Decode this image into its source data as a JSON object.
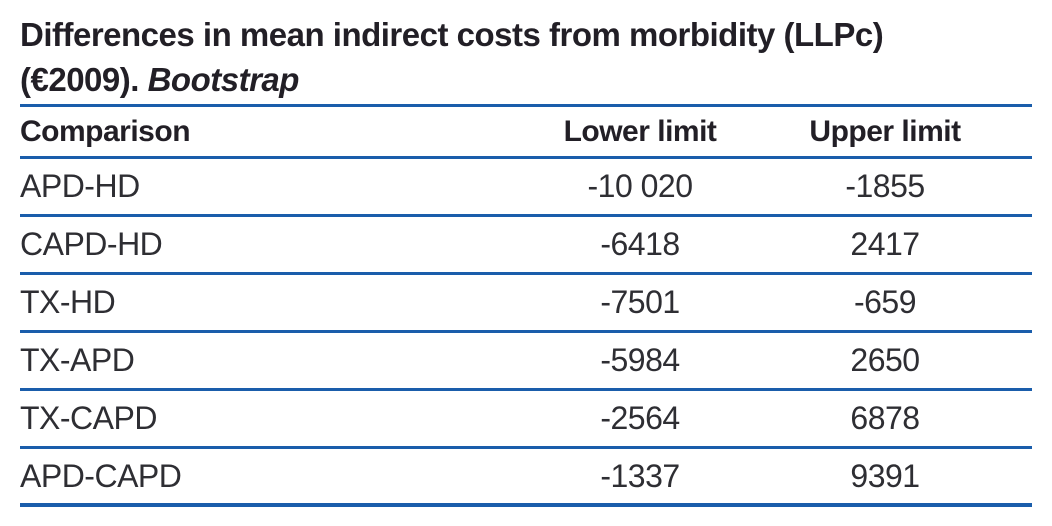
{
  "title": {
    "line1": "Differences in mean indirect costs from morbidity (LLPc)",
    "line2_prefix": "(€2009). ",
    "line2_emphasis": "Bootstrap"
  },
  "table": {
    "columns": [
      "Comparison",
      "Lower limit",
      "Upper limit"
    ],
    "rows": [
      {
        "comparison": "APD-HD",
        "lower": "-10 020",
        "upper": "-1855"
      },
      {
        "comparison": "CAPD-HD",
        "lower": "-6418",
        "upper": "2417"
      },
      {
        "comparison": "TX-HD",
        "lower": "-7501",
        "upper": "-659"
      },
      {
        "comparison": "TX-APD",
        "lower": "-5984",
        "upper": "2650"
      },
      {
        "comparison": "TX-CAPD",
        "lower": "-2564",
        "upper": "6878"
      },
      {
        "comparison": "APD-CAPD",
        "lower": "-1337",
        "upper": "9391"
      }
    ]
  },
  "colors": {
    "rule_blue": "#1a5dab",
    "title_text": "#221f26",
    "data_text": "#2e2e33",
    "background": "#ffffff"
  }
}
